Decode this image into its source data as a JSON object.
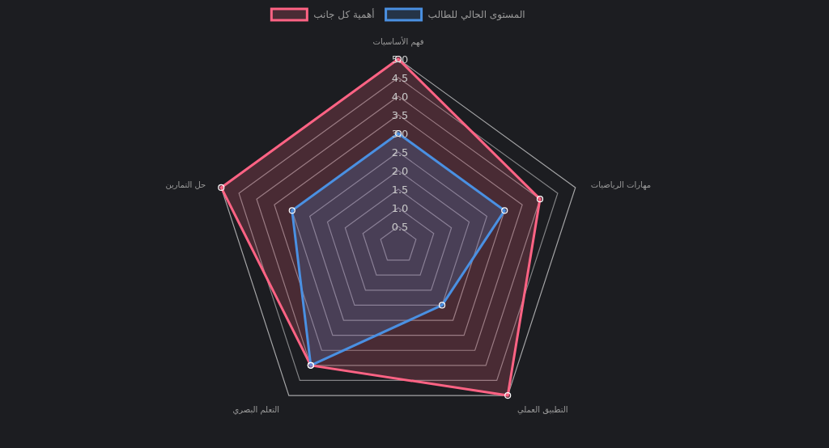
{
  "chart_data": {
    "type": "radar",
    "categories": [
      "فهم الأساسيات",
      "مهارات الرياضيات",
      "التطبيق العملي",
      "التعلم البصري",
      "حل التمارين"
    ],
    "series": [
      {
        "name": "أهمية كل جانب",
        "color": "#ff6384",
        "values": [
          5,
          4,
          5,
          4,
          5
        ]
      },
      {
        "name": "المستوى الحالي للطالب",
        "color": "#4a90e2",
        "values": [
          3,
          3,
          2,
          4,
          3
        ]
      }
    ],
    "ylim": [
      0,
      5
    ],
    "yticks": [
      0.5,
      {
        "value": 1,
        "label": "1.0"
      },
      1.5,
      {
        "value": 2,
        "label": "2.0"
      },
      2.5,
      {
        "value": 3,
        "label": "3.0"
      },
      3.5,
      {
        "value": 4,
        "label": "4.0"
      },
      4.5,
      {
        "value": 5,
        "label": "5.0"
      }
    ],
    "legend": "top",
    "grid": true,
    "marker": "circle"
  }
}
